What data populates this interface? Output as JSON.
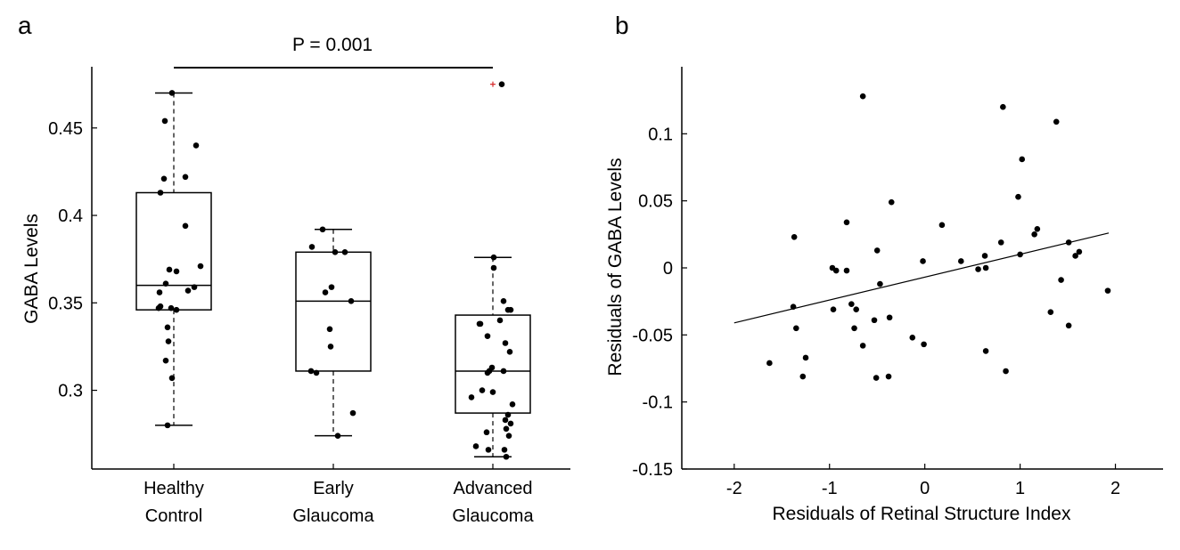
{
  "colors": {
    "axis": "#000000",
    "point": "#000000",
    "outlier": "#d62728",
    "background": "#ffffff"
  },
  "chart_data": [
    {
      "panel_label": "a",
      "type": "box",
      "title": "",
      "xlabel": "",
      "ylabel": "GABA Levels",
      "ylim": [
        0.255,
        0.485
      ],
      "yticks": [
        0.3,
        0.35,
        0.4,
        0.45
      ],
      "ytick_labels": [
        "0.3",
        "0.35",
        "0.4",
        "0.45"
      ],
      "categories": [
        {
          "line1": "Healthy",
          "line2": "Control"
        },
        {
          "line1": "Early",
          "line2": "Glaucoma"
        },
        {
          "line1": "Advanced",
          "line2": "Glaucoma"
        }
      ],
      "boxes": [
        {
          "name": "Healthy Control",
          "whisker_low": 0.28,
          "q1": 0.346,
          "median": 0.36,
          "q3": 0.413,
          "whisker_high": 0.47,
          "outliers": []
        },
        {
          "name": "Early Glaucoma",
          "whisker_low": 0.274,
          "q1": 0.311,
          "median": 0.351,
          "q3": 0.379,
          "whisker_high": 0.392,
          "outliers": []
        },
        {
          "name": "Advanced Glaucoma",
          "whisker_low": 0.262,
          "q1": 0.287,
          "median": 0.311,
          "q3": 0.343,
          "whisker_high": 0.376,
          "outliers": [
            0.475
          ]
        }
      ],
      "points": [
        [
          [
            -0.02,
            0.47
          ],
          [
            -0.1,
            0.454
          ],
          [
            0.25,
            0.44
          ],
          [
            0.13,
            0.422
          ],
          [
            -0.11,
            0.421
          ],
          [
            -0.15,
            0.413
          ],
          [
            0.13,
            0.394
          ],
          [
            0.3,
            0.371
          ],
          [
            0.03,
            0.368
          ],
          [
            -0.05,
            0.369
          ],
          [
            0.23,
            0.359
          ],
          [
            0.16,
            0.357
          ],
          [
            -0.09,
            0.361
          ],
          [
            -0.16,
            0.356
          ],
          [
            -0.15,
            0.348
          ],
          [
            -0.17,
            0.347
          ],
          [
            -0.03,
            0.347
          ],
          [
            0.03,
            0.346
          ],
          [
            -0.07,
            0.336
          ],
          [
            -0.06,
            0.328
          ],
          [
            -0.09,
            0.317
          ],
          [
            -0.02,
            0.307
          ],
          [
            -0.07,
            0.28
          ]
        ],
        [
          [
            -0.12,
            0.392
          ],
          [
            -0.24,
            0.382
          ],
          [
            0.02,
            0.379
          ],
          [
            0.13,
            0.379
          ],
          [
            -0.02,
            0.359
          ],
          [
            -0.09,
            0.356
          ],
          [
            0.2,
            0.351
          ],
          [
            -0.04,
            0.335
          ],
          [
            -0.03,
            0.325
          ],
          [
            -0.25,
            0.311
          ],
          [
            -0.19,
            0.31
          ],
          [
            0.22,
            0.287
          ],
          [
            0.05,
            0.274
          ]
        ],
        [
          [
            0.1,
            0.475
          ],
          [
            0.01,
            0.376
          ],
          [
            0.01,
            0.37
          ],
          [
            -0.15,
            0.338
          ],
          [
            -0.14,
            0.338
          ],
          [
            0.12,
            0.351
          ],
          [
            0.17,
            0.346
          ],
          [
            0.2,
            0.346
          ],
          [
            0.08,
            0.34
          ],
          [
            -0.06,
            0.331
          ],
          [
            0.14,
            0.327
          ],
          [
            0.19,
            0.322
          ],
          [
            -0.01,
            0.313
          ],
          [
            -0.04,
            0.311
          ],
          [
            -0.06,
            0.31
          ],
          [
            0.12,
            0.311
          ],
          [
            -0.12,
            0.3
          ],
          [
            -0.24,
            0.296
          ],
          [
            0.0,
            0.299
          ],
          [
            0.22,
            0.292
          ],
          [
            0.17,
            0.286
          ],
          [
            0.14,
            0.283
          ],
          [
            0.15,
            0.278
          ],
          [
            0.2,
            0.281
          ],
          [
            0.18,
            0.274
          ],
          [
            -0.07,
            0.276
          ],
          [
            -0.19,
            0.268
          ],
          [
            -0.05,
            0.266
          ],
          [
            0.13,
            0.266
          ],
          [
            0.15,
            0.262
          ]
        ]
      ],
      "significance": {
        "label": "P = 0.001",
        "from": 0,
        "to": 2
      }
    },
    {
      "panel_label": "b",
      "type": "scatter",
      "title": "",
      "xlabel": "Residuals of Retinal Structure Index",
      "ylabel": "Residuals of GABA Levels",
      "xlim": [
        -2.55,
        2.5
      ],
      "ylim": [
        -0.15,
        0.15
      ],
      "xticks": [
        -2,
        -1,
        0,
        1,
        2
      ],
      "xtick_labels": [
        "-2",
        "-1",
        "0",
        "1",
        "2"
      ],
      "yticks": [
        -0.15,
        -0.1,
        -0.05,
        0,
        0.05,
        0.1
      ],
      "ytick_labels": [
        "-0.15",
        "-0.1",
        "-0.05",
        "0",
        "0.05",
        "0.1"
      ],
      "fit_line": {
        "x": [
          -2.0,
          1.93
        ],
        "y": [
          -0.041,
          0.026
        ]
      },
      "points": [
        [
          -0.65,
          0.128
        ],
        [
          0.82,
          0.12
        ],
        [
          1.38,
          0.109
        ],
        [
          1.02,
          0.081
        ],
        [
          0.98,
          0.053
        ],
        [
          -0.35,
          0.049
        ],
        [
          -0.82,
          0.034
        ],
        [
          0.18,
          0.032
        ],
        [
          1.18,
          0.029
        ],
        [
          -1.37,
          0.023
        ],
        [
          1.15,
          0.025
        ],
        [
          1.51,
          0.019
        ],
        [
          0.8,
          0.019
        ],
        [
          1.62,
          0.012
        ],
        [
          1.58,
          0.009
        ],
        [
          1.0,
          0.01
        ],
        [
          0.63,
          0.009
        ],
        [
          -0.5,
          0.013
        ],
        [
          -0.02,
          0.005
        ],
        [
          0.38,
          0.005
        ],
        [
          -0.97,
          0.0
        ],
        [
          -0.93,
          -0.002
        ],
        [
          -0.82,
          -0.002
        ],
        [
          0.56,
          -0.001
        ],
        [
          0.64,
          -0.0
        ],
        [
          1.43,
          -0.009
        ],
        [
          1.92,
          -0.017
        ],
        [
          -0.47,
          -0.012
        ],
        [
          -1.38,
          -0.029
        ],
        [
          -0.96,
          -0.031
        ],
        [
          -0.72,
          -0.031
        ],
        [
          -0.77,
          -0.027
        ],
        [
          1.32,
          -0.033
        ],
        [
          -0.37,
          -0.037
        ],
        [
          -0.53,
          -0.039
        ],
        [
          -0.13,
          -0.052
        ],
        [
          -0.01,
          -0.057
        ],
        [
          -0.65,
          -0.058
        ],
        [
          -1.35,
          -0.045
        ],
        [
          -0.74,
          -0.045
        ],
        [
          1.51,
          -0.043
        ],
        [
          0.64,
          -0.062
        ],
        [
          -1.25,
          -0.067
        ],
        [
          -1.63,
          -0.071
        ],
        [
          0.85,
          -0.077
        ],
        [
          -1.28,
          -0.081
        ],
        [
          -0.51,
          -0.082
        ],
        [
          -0.38,
          -0.081
        ]
      ]
    }
  ]
}
